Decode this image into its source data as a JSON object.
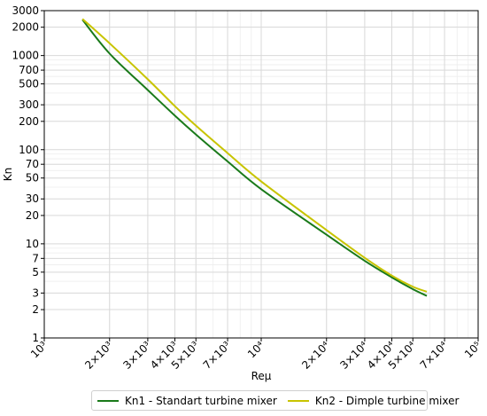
{
  "chart_data": {
    "type": "line",
    "title": "",
    "xlabel": "Reμ",
    "ylabel": "Kn",
    "x_scale": "log",
    "y_scale": "log",
    "xlim": [
      1000,
      100000
    ],
    "ylim": [
      1,
      3000
    ],
    "grid": true,
    "legend_position": "bottom",
    "x_ticks": [
      {
        "value": 1000,
        "label": "10³"
      },
      {
        "value": 2000,
        "label": "2×10³"
      },
      {
        "value": 3000,
        "label": "3×10³"
      },
      {
        "value": 4000,
        "label": "4×10³"
      },
      {
        "value": 5000,
        "label": "5×10³"
      },
      {
        "value": 7000,
        "label": "7×10³"
      },
      {
        "value": 10000,
        "label": "10⁴"
      },
      {
        "value": 20000,
        "label": "2×10⁴"
      },
      {
        "value": 30000,
        "label": "3×10⁴"
      },
      {
        "value": 40000,
        "label": "4×10⁴"
      },
      {
        "value": 50000,
        "label": "5×10⁴"
      },
      {
        "value": 70000,
        "label": "7×10⁴"
      },
      {
        "value": 100000,
        "label": "10⁵"
      }
    ],
    "y_ticks": [
      {
        "value": 1,
        "label": "1"
      },
      {
        "value": 2,
        "label": "2"
      },
      {
        "value": 3,
        "label": "3"
      },
      {
        "value": 5,
        "label": "5"
      },
      {
        "value": 7,
        "label": "7"
      },
      {
        "value": 10,
        "label": "10"
      },
      {
        "value": 20,
        "label": "20"
      },
      {
        "value": 30,
        "label": "30"
      },
      {
        "value": 50,
        "label": "50"
      },
      {
        "value": 70,
        "label": "70"
      },
      {
        "value": 100,
        "label": "100"
      },
      {
        "value": 200,
        "label": "200"
      },
      {
        "value": 300,
        "label": "300"
      },
      {
        "value": 500,
        "label": "500"
      },
      {
        "value": 700,
        "label": "700"
      },
      {
        "value": 1000,
        "label": "1000"
      },
      {
        "value": 2000,
        "label": "2000"
      },
      {
        "value": 3000,
        "label": "3000"
      }
    ],
    "series": [
      {
        "name": "Kn1 - Standart turbine mixer",
        "color": "#1a7a1a",
        "x": [
          1500,
          2000,
          3000,
          4000,
          5000,
          7000,
          10000,
          20000,
          30000,
          40000,
          50000,
          58000
        ],
        "y": [
          2400,
          1050,
          430,
          230,
          145,
          75,
          38,
          12.5,
          6.6,
          4.4,
          3.3,
          2.8
        ]
      },
      {
        "name": "Kn2 - Dimple turbine mixer",
        "color": "#c8c400",
        "x": [
          1500,
          2000,
          3000,
          4000,
          5000,
          7000,
          10000,
          20000,
          30000,
          40000,
          50000,
          58000
        ],
        "y": [
          2450,
          1350,
          560,
          290,
          180,
          92,
          46,
          14,
          7.1,
          4.6,
          3.5,
          3.1
        ]
      }
    ]
  }
}
